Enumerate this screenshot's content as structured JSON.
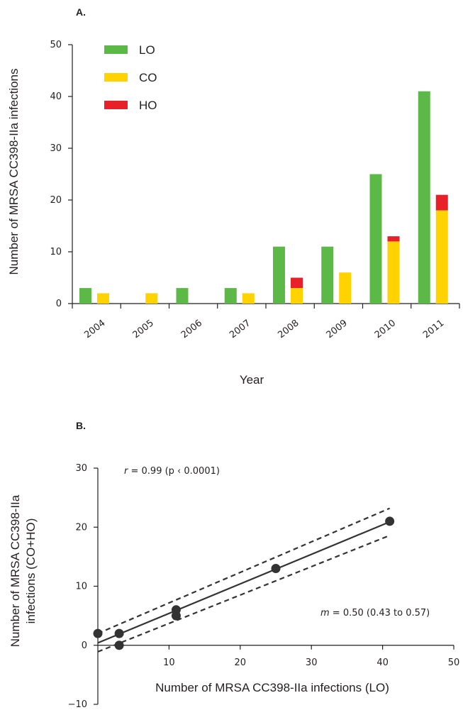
{
  "panel_a": {
    "label": "A."
  },
  "panel_b": {
    "label": "B."
  },
  "colors": {
    "LO": "#5cb847",
    "CO": "#ffd200",
    "HO": "#e8202a",
    "line": "#333333",
    "point": "#333333"
  },
  "chart_data": [
    {
      "type": "bar",
      "stacked_groups": true,
      "xlabel": "Year",
      "ylabel": "Number of MRSA CC398-IIa infections",
      "ylim": [
        0,
        50
      ],
      "yticks": [
        0,
        10,
        20,
        30,
        40,
        50
      ],
      "categories": [
        "2004",
        "2005",
        "2006",
        "2007",
        "2008",
        "2009",
        "2010",
        "2011"
      ],
      "legend": {
        "placement": "top-left",
        "entries": [
          "LO",
          "CO",
          "HO"
        ]
      },
      "series": [
        {
          "name": "LO",
          "stack": "left",
          "values": [
            3,
            0,
            3,
            3,
            11,
            11,
            25,
            41
          ]
        },
        {
          "name": "CO",
          "stack": "right",
          "values": [
            2,
            2,
            0,
            2,
            3,
            6,
            12,
            18
          ]
        },
        {
          "name": "HO",
          "stack": "right",
          "values": [
            0,
            0,
            0,
            0,
            2,
            0,
            1,
            3
          ]
        }
      ],
      "grid": false
    },
    {
      "type": "scatter",
      "xlabel": "Number of MRSA CC398-IIa infections (LO)",
      "ylabel": [
        "Number of MRSA CC398-IIa",
        "infections (CO+HO)"
      ],
      "xlim": [
        0,
        50
      ],
      "ylim": [
        -10,
        30
      ],
      "xticks": [
        10,
        20,
        30,
        40,
        50
      ],
      "yticks": [
        -10,
        0,
        10,
        20,
        30
      ],
      "points": [
        {
          "x": 0,
          "y": 2
        },
        {
          "x": 3,
          "y": 2
        },
        {
          "x": 3,
          "y": 0
        },
        {
          "x": 11,
          "y": 6
        },
        {
          "x": 11,
          "y": 5
        },
        {
          "x": 25,
          "y": 13
        },
        {
          "x": 41,
          "y": 21
        }
      ],
      "fit": {
        "x": [
          0,
          41
        ],
        "y": [
          0.4,
          20.9
        ]
      },
      "ci_upper": {
        "x": [
          0,
          41
        ],
        "y": [
          2.0,
          23.2
        ]
      },
      "ci_lower": {
        "x": [
          0,
          41
        ],
        "y": [
          -1.1,
          18.6
        ]
      },
      "annotations": {
        "r_italic": "r",
        "r_text": " = 0.99 (p ‹ 0.0001)",
        "m_italic": "m",
        "m_text": " = 0.50 (0.43 to 0.57)"
      },
      "grid": false
    }
  ]
}
